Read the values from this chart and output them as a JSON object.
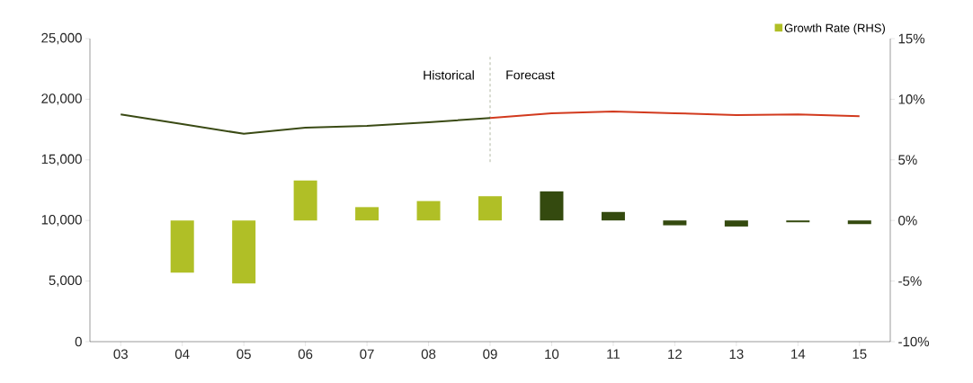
{
  "chart_data": {
    "type": "bar",
    "categories": [
      "03",
      "04",
      "05",
      "06",
      "07",
      "08",
      "09",
      "10",
      "11",
      "12",
      "13",
      "14",
      "15"
    ],
    "series": [
      {
        "name": "Growth Rate (RHS)",
        "axis": "y2",
        "color": "#b0bf26",
        "values": [
          null,
          -4.3,
          -5.2,
          3.3,
          1.1,
          1.6,
          2.0,
          2.4,
          0.7,
          -0.4,
          -0.5,
          -0.15,
          -0.3
        ],
        "colors": [
          "#b0bf26",
          "#b0bf26",
          "#b0bf26",
          "#b0bf26",
          "#b0bf26",
          "#b0bf26",
          "#b0bf26",
          "#344a0f",
          "#344a0f",
          "#344a0f",
          "#344a0f",
          "#344a0f",
          "#344a0f"
        ]
      },
      {
        "type": "line",
        "color": "#3a4a14",
        "values": [
          18750,
          17950,
          17150,
          17650,
          17800,
          18100,
          18450,
          null,
          null,
          null,
          null,
          null,
          null
        ]
      },
      {
        "type": "line",
        "color": "#d23a1e",
        "values": [
          null,
          null,
          null,
          null,
          null,
          null,
          18450,
          18850,
          19000,
          18850,
          18700,
          18750,
          18600
        ]
      }
    ],
    "ylim": [
      0,
      25000
    ],
    "yticks": [
      {
        "value": 0,
        "label": "0"
      },
      {
        "value": 5000,
        "label": "5,000"
      },
      {
        "value": 10000,
        "label": "10,000"
      },
      {
        "value": 15000,
        "label": "15,000"
      },
      {
        "value": 20000,
        "label": "20,000"
      },
      {
        "value": 25000,
        "label": "25,000"
      }
    ],
    "y2lim": [
      -10,
      15
    ],
    "y2ticks": [
      {
        "value": -10,
        "label": "-10%"
      },
      {
        "value": -5,
        "label": "-5%"
      },
      {
        "value": 0,
        "label": "0%"
      },
      {
        "value": 5,
        "label": "5%"
      },
      {
        "value": 10,
        "label": "10%"
      },
      {
        "value": 15,
        "label": "15%"
      }
    ],
    "ref_lines": [
      {
        "axis": "x",
        "value": "09",
        "line_style": "dashed",
        "color": "#3a4a14"
      }
    ],
    "annotations": [
      "Historical",
      "Forecast"
    ],
    "legend": "top right",
    "grid": false
  }
}
